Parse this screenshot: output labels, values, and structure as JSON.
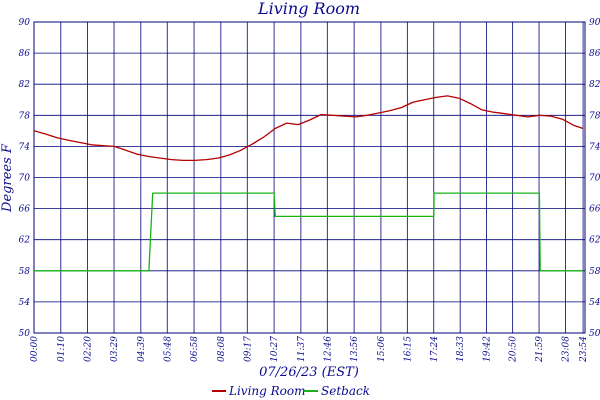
{
  "chart_data": {
    "type": "line",
    "title": "Living Room",
    "xlabel": "07/26/23 (EST)",
    "ylabel": "Degrees F",
    "ylim": [
      50,
      90
    ],
    "yticks": [
      "50",
      "54",
      "58",
      "62",
      "66",
      "70",
      "74",
      "78",
      "82",
      "86",
      "90"
    ],
    "xlim_minutes": [
      0,
      1439
    ],
    "xticks": [
      "00:00",
      "01:10",
      "02:20",
      "03:29",
      "04:39",
      "05:48",
      "06:58",
      "08:08",
      "09:17",
      "10:27",
      "11:37",
      "12:46",
      "13:56",
      "15:06",
      "16:15",
      "17:24",
      "18:33",
      "19:42",
      "20:50",
      "21:59",
      "23:08",
      "23:54"
    ],
    "grid": true,
    "legend_position": "bottom",
    "colors": {
      "grid": "#00007a",
      "text": "#0a0a8c",
      "Living Room": "#b50000",
      "Setback": "#19b219"
    },
    "series": [
      {
        "name": "Living Room",
        "x": [
          "00:00",
          "00:30",
          "01:00",
          "01:30",
          "02:00",
          "02:30",
          "03:00",
          "03:30",
          "04:00",
          "04:30",
          "05:00",
          "05:30",
          "06:00",
          "06:30",
          "07:00",
          "07:30",
          "08:00",
          "08:30",
          "09:00",
          "09:30",
          "10:00",
          "10:30",
          "11:00",
          "11:30",
          "12:00",
          "12:30",
          "13:00",
          "13:30",
          "14:00",
          "14:30",
          "15:00",
          "15:30",
          "16:00",
          "16:30",
          "17:00",
          "17:30",
          "18:00",
          "18:30",
          "19:00",
          "19:30",
          "20:00",
          "20:30",
          "21:00",
          "21:30",
          "22:00",
          "22:30",
          "23:00",
          "23:30",
          "23:54"
        ],
        "values": [
          76.0,
          75.6,
          75.1,
          74.8,
          74.5,
          74.2,
          74.1,
          74.0,
          73.5,
          73.0,
          72.7,
          72.5,
          72.3,
          72.2,
          72.2,
          72.3,
          72.5,
          72.9,
          73.5,
          74.3,
          75.2,
          76.3,
          77.0,
          76.8,
          77.4,
          78.1,
          78.0,
          77.9,
          77.8,
          78.0,
          78.3,
          78.6,
          79.0,
          79.7,
          80.0,
          80.3,
          80.5,
          80.2,
          79.5,
          78.7,
          78.4,
          78.2,
          78.0,
          77.8,
          78.0,
          77.9,
          77.5,
          76.7,
          76.3
        ]
      },
      {
        "name": "Setback",
        "x": [
          "00:00",
          "05:00",
          "05:05",
          "05:10",
          "10:27",
          "10:30",
          "17:24",
          "17:25",
          "22:00",
          "22:01",
          "22:02",
          "23:54"
        ],
        "values": [
          58,
          58,
          63,
          68,
          68,
          65,
          65,
          68,
          68,
          63,
          58,
          58
        ]
      }
    ]
  }
}
